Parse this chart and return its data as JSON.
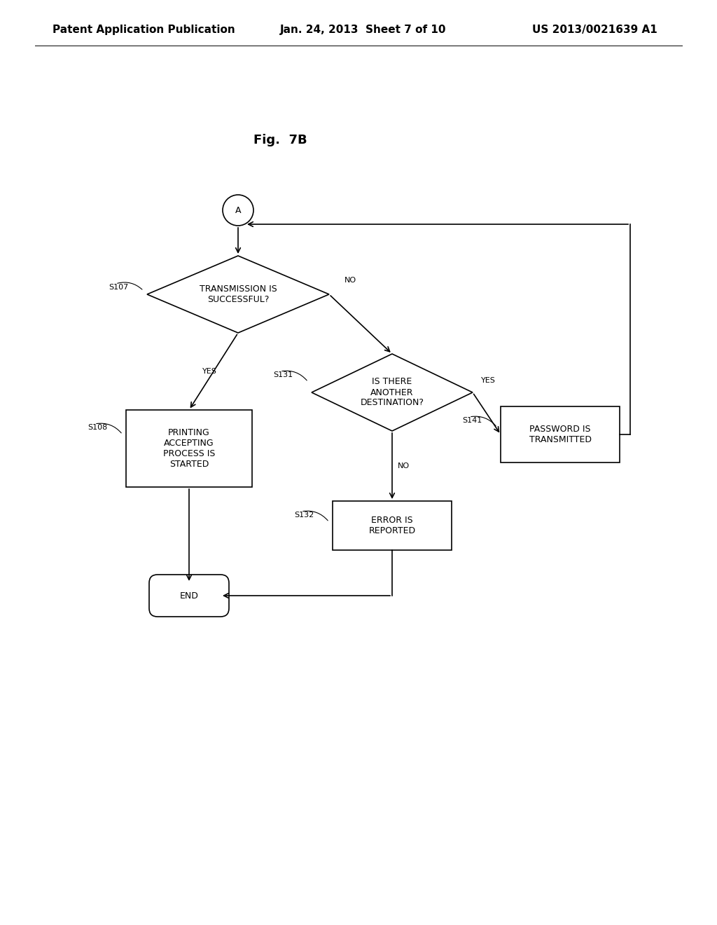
{
  "title": "Fig.  7B",
  "header_left": "Patent Application Publication",
  "header_mid": "Jan. 24, 2013  Sheet 7 of 10",
  "header_right": "US 2013/0021639 A1",
  "bg_color": "#ffffff",
  "line_color": "#000000",
  "text_color": "#000000",
  "font_size_header": 11,
  "font_size_title": 13,
  "font_size_node": 9,
  "font_size_label": 8
}
